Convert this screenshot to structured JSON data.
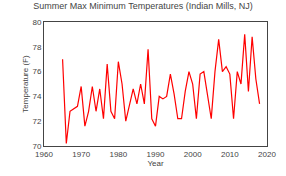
{
  "chart_data": {
    "type": "line",
    "title": "Summer Max Minimum Temperatures (Indian Mills, NJ)",
    "xlabel": "Year",
    "ylabel": "Temperature (F)",
    "x": [
      1965,
      1966,
      1967,
      1968,
      1969,
      1970,
      1971,
      1972,
      1973,
      1974,
      1975,
      1976,
      1977,
      1978,
      1979,
      1980,
      1981,
      1982,
      1983,
      1984,
      1985,
      1986,
      1987,
      1988,
      1989,
      1990,
      1991,
      1992,
      1993,
      1994,
      1995,
      1996,
      1997,
      1998,
      1999,
      2000,
      2001,
      2002,
      2003,
      2004,
      2005,
      2006,
      2007,
      2008,
      2009,
      2010,
      2011,
      2012,
      2013,
      2014,
      2015,
      2016,
      2017,
      2018
    ],
    "values": [
      77.0,
      70.2,
      72.8,
      73.0,
      73.2,
      74.8,
      71.6,
      72.8,
      74.8,
      72.8,
      74.6,
      72.2,
      76.6,
      72.8,
      72.2,
      76.8,
      75.0,
      72.0,
      73.4,
      74.6,
      73.4,
      75.0,
      73.4,
      77.8,
      72.2,
      71.6,
      74.0,
      73.8,
      74.0,
      75.8,
      74.2,
      72.2,
      72.2,
      74.4,
      76.0,
      75.0,
      72.2,
      75.8,
      76.0,
      74.0,
      72.2,
      76.0,
      78.6,
      76.0,
      76.4,
      75.8,
      72.2,
      76.0,
      75.0,
      79.0,
      74.4,
      78.8,
      75.4,
      73.4
    ],
    "color": "red",
    "xlim": [
      1960,
      2020
    ],
    "ylim": [
      70,
      80
    ],
    "xticks": [
      1960,
      1970,
      1980,
      1990,
      2000,
      2010,
      2020
    ],
    "yticks": [
      70,
      72,
      74,
      76,
      78,
      80
    ],
    "grid": false
  }
}
